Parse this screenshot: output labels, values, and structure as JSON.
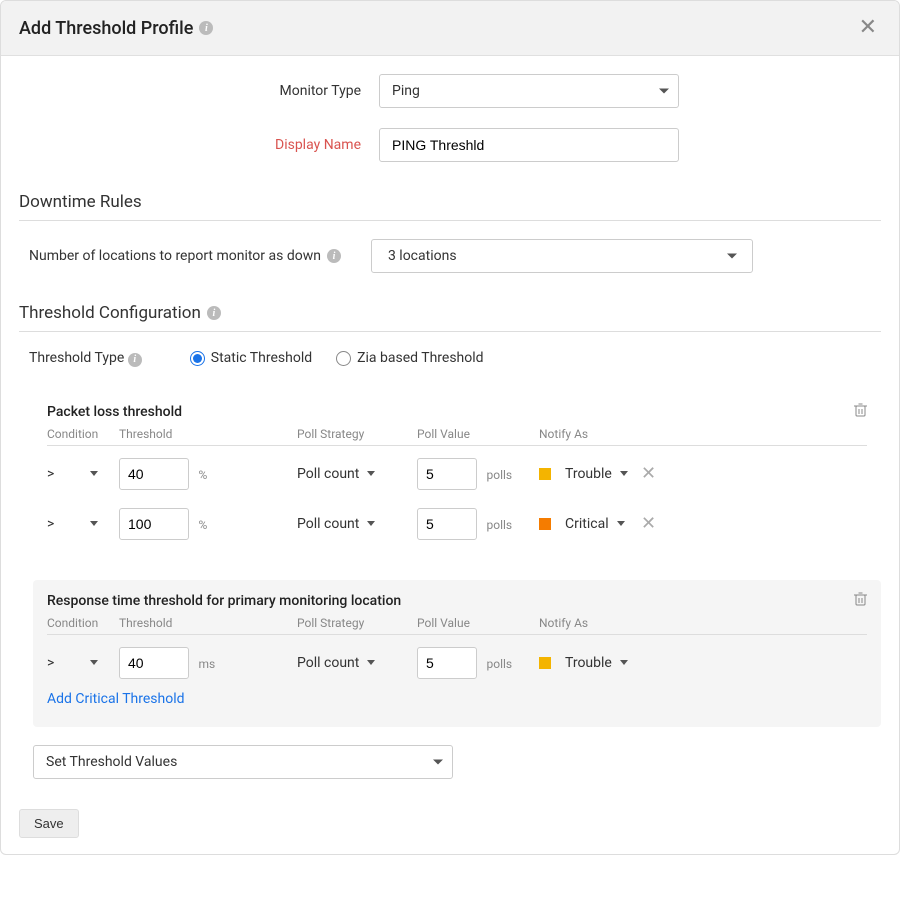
{
  "header": {
    "title": "Add Threshold Profile"
  },
  "form": {
    "monitor_type_label": "Monitor Type",
    "monitor_type_value": "Ping",
    "display_name_label": "Display Name",
    "display_name_value": "PING Threshld"
  },
  "downtime": {
    "section_title": "Downtime Rules",
    "locations_label": "Number of locations to report monitor as down",
    "locations_value": "3 locations"
  },
  "config": {
    "section_title": "Threshold Configuration",
    "type_label": "Threshold Type",
    "radio_static": "Static Threshold",
    "radio_zia": "Zia based Threshold"
  },
  "columns": {
    "condition": "Condition",
    "threshold": "Threshold",
    "strategy": "Poll Strategy",
    "pollvalue": "Poll Value",
    "notify": "Notify As"
  },
  "packet": {
    "title": "Packet loss threshold",
    "rows": [
      {
        "cond": ">",
        "thresh": "40",
        "unit": "%",
        "strategy": "Poll count",
        "pval": "5",
        "punit": "polls",
        "notify": "Trouble",
        "color": "#f4b400"
      },
      {
        "cond": ">",
        "thresh": "100",
        "unit": "%",
        "strategy": "Poll count",
        "pval": "5",
        "punit": "polls",
        "notify": "Critical",
        "color": "#f57c00"
      }
    ]
  },
  "response": {
    "title": "Response time threshold for primary monitoring location",
    "rows": [
      {
        "cond": ">",
        "thresh": "40",
        "unit": "ms",
        "strategy": "Poll count",
        "pval": "5",
        "punit": "polls",
        "notify": "Trouble",
        "color": "#f4b400"
      }
    ],
    "add_link": "Add Critical Threshold"
  },
  "set_values": {
    "label": "Set Threshold Values"
  },
  "footer": {
    "save": "Save"
  }
}
